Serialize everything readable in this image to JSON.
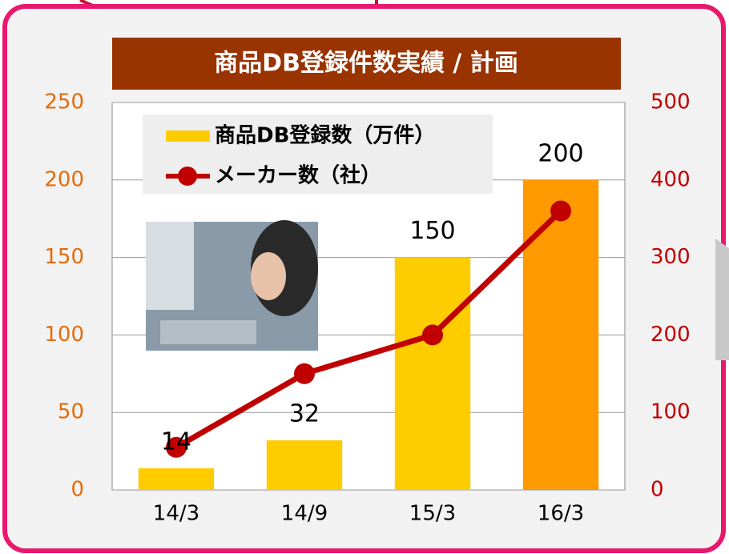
{
  "chart_data": {
    "type": "bar-line",
    "title": "商品DB登録件数実績 / 計画",
    "categories": [
      "14/3",
      "14/9",
      "15/3",
      "16/3"
    ],
    "series": [
      {
        "name": "商品DB登録数（万件）",
        "type": "bar",
        "color": "#ffcc00",
        "colors": [
          "#ffcc00",
          "#ffcc00",
          "#ffcc00",
          "#ff9900"
        ],
        "values": [
          14,
          32,
          150,
          200
        ]
      },
      {
        "name": "メーカー数（社）",
        "type": "line",
        "axis": "y2",
        "color": "#c00000",
        "values": [
          55,
          150,
          200,
          360
        ]
      }
    ],
    "ylim": [
      0,
      250
    ],
    "yticks": [
      0,
      50,
      100,
      150,
      200,
      250
    ],
    "y2lim": [
      0,
      500
    ],
    "y2ticks": [
      0,
      100,
      200,
      300,
      400,
      500
    ],
    "grid": true
  }
}
